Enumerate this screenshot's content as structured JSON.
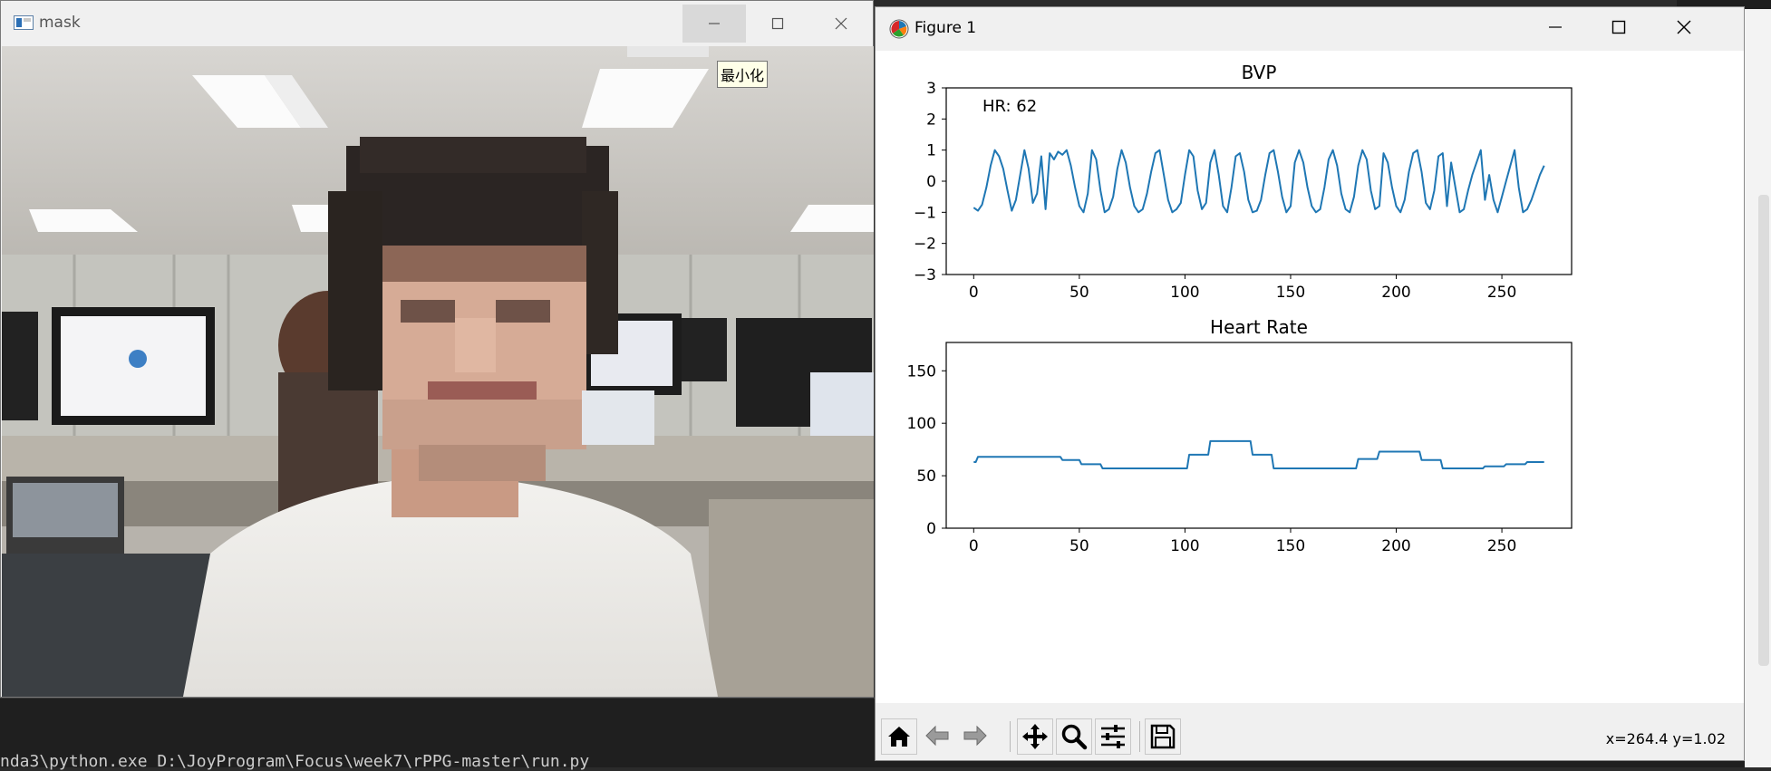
{
  "mask_window": {
    "title": "mask",
    "tooltip": "最小化",
    "icons": {
      "app": "opencv-window-icon",
      "minimize": "minimize-icon",
      "maximize": "maximize-icon",
      "close": "close-icon"
    }
  },
  "figure_window": {
    "title": "Figure 1",
    "icons": {
      "app": "matplotlib-figure-icon",
      "minimize": "minimize-icon",
      "maximize": "maximize-icon",
      "close": "close-icon"
    },
    "toolbar": {
      "buttons": [
        "home-icon",
        "back-arrow-icon",
        "forward-arrow-icon",
        "pan-icon",
        "zoom-icon",
        "subplots-config-icon",
        "save-icon"
      ],
      "coords": "x=264.4 y=1.02"
    }
  },
  "terminal": {
    "line": "nda3\\python.exe D:\\JoyProgram\\Focus\\week7\\rPPG-master\\run.py"
  },
  "colors": {
    "line": "#1f77b4",
    "tooltip_bg": "#ffffe8",
    "titlebar": "#f0f0f0"
  },
  "chart_data": [
    {
      "type": "line",
      "title": "BVP",
      "annotation": "HR: 62",
      "xlim": [
        -13,
        283
      ],
      "ylim": [
        -3,
        3
      ],
      "xticks": [
        0,
        50,
        100,
        150,
        200,
        250
      ],
      "yticks": [
        -3,
        -2,
        -1,
        0,
        1,
        2,
        3
      ],
      "grid": false,
      "series": [
        {
          "x": [
            0,
            2,
            4,
            6,
            8,
            10,
            12,
            14,
            16,
            18,
            20,
            22,
            24,
            26,
            28,
            30,
            32,
            34,
            36,
            38,
            40,
            42,
            44,
            46,
            48,
            50,
            52,
            54,
            56,
            58,
            60,
            62,
            64,
            66,
            68,
            70,
            72,
            74,
            76,
            78,
            80,
            82,
            84,
            86,
            88,
            90,
            92,
            94,
            96,
            98,
            100,
            102,
            104,
            106,
            108,
            110,
            112,
            114,
            116,
            118,
            120,
            122,
            124,
            126,
            128,
            130,
            132,
            134,
            136,
            138,
            140,
            142,
            144,
            146,
            148,
            150,
            152,
            154,
            156,
            158,
            160,
            162,
            164,
            166,
            168,
            170,
            172,
            174,
            176,
            178,
            180,
            182,
            184,
            186,
            188,
            190,
            192,
            194,
            196,
            198,
            200,
            202,
            204,
            206,
            208,
            210,
            212,
            214,
            216,
            218,
            220,
            222,
            224,
            226,
            228,
            230,
            232,
            234,
            236,
            238,
            240,
            242,
            244,
            246,
            248,
            250,
            252,
            254,
            256,
            258,
            260,
            262,
            264,
            266,
            268,
            270
          ],
          "y": [
            -0.85,
            -0.95,
            -0.75,
            -0.2,
            0.5,
            1.0,
            0.8,
            0.4,
            -0.3,
            -0.95,
            -0.6,
            0.2,
            1.0,
            0.4,
            -0.7,
            -0.4,
            0.8,
            -0.9,
            0.9,
            0.7,
            0.95,
            0.85,
            1.0,
            0.5,
            -0.2,
            -0.8,
            -1.0,
            -0.4,
            1.0,
            0.7,
            -0.3,
            -1.0,
            -0.9,
            -0.5,
            0.4,
            1.0,
            0.6,
            -0.2,
            -0.8,
            -1.0,
            -0.9,
            -0.4,
            0.3,
            0.9,
            1.0,
            0.2,
            -0.6,
            -1.0,
            -0.9,
            -0.7,
            0.2,
            1.0,
            0.8,
            -0.3,
            -0.9,
            -0.7,
            0.6,
            1.0,
            0.2,
            -0.8,
            -1.0,
            -0.2,
            0.8,
            0.9,
            0.3,
            -0.6,
            -1.0,
            -0.95,
            -0.6,
            0.2,
            0.9,
            1.0,
            0.3,
            -0.5,
            -1.0,
            -0.8,
            0.6,
            1.0,
            0.6,
            -0.2,
            -0.8,
            -1.0,
            -0.9,
            -0.2,
            0.7,
            1.0,
            0.5,
            -0.4,
            -0.9,
            -1.0,
            -0.5,
            0.5,
            1.0,
            0.7,
            -0.3,
            -0.9,
            -0.8,
            0.9,
            0.6,
            -0.2,
            -0.8,
            -1.0,
            -0.6,
            0.3,
            0.9,
            1.0,
            0.3,
            -0.7,
            -0.9,
            -0.3,
            0.8,
            0.9,
            -0.8,
            0.6,
            -0.2,
            -1.0,
            -0.9,
            -0.3,
            0.2,
            0.6,
            1.0,
            -0.6,
            0.2,
            -0.6,
            -1.0,
            -0.5,
            0.0,
            0.5,
            1.0,
            -0.2,
            -1.0,
            -0.9,
            -0.6,
            -0.2,
            0.2,
            0.5
          ]
        }
      ]
    },
    {
      "type": "line",
      "title": "Heart Rate",
      "xlim": [
        -13,
        283
      ],
      "ylim": [
        0,
        177
      ],
      "xticks": [
        0,
        50,
        100,
        150,
        200,
        250
      ],
      "yticks": [
        0,
        50,
        100,
        150
      ],
      "grid": false,
      "series": [
        {
          "x": [
            0,
            1,
            2,
            3,
            41,
            42,
            50,
            51,
            60,
            61,
            101,
            102,
            111,
            112,
            131,
            132,
            141,
            142,
            181,
            182,
            191,
            192,
            211,
            212,
            221,
            222,
            241,
            242,
            251,
            252,
            261,
            262,
            270
          ],
          "y": [
            63,
            63,
            68,
            68,
            68,
            65,
            65,
            61,
            61,
            57,
            57,
            70,
            70,
            83,
            83,
            70,
            70,
            57,
            57,
            66,
            66,
            73,
            73,
            65,
            65,
            57,
            57,
            59,
            59,
            61,
            61,
            63,
            63
          ]
        }
      ]
    }
  ]
}
